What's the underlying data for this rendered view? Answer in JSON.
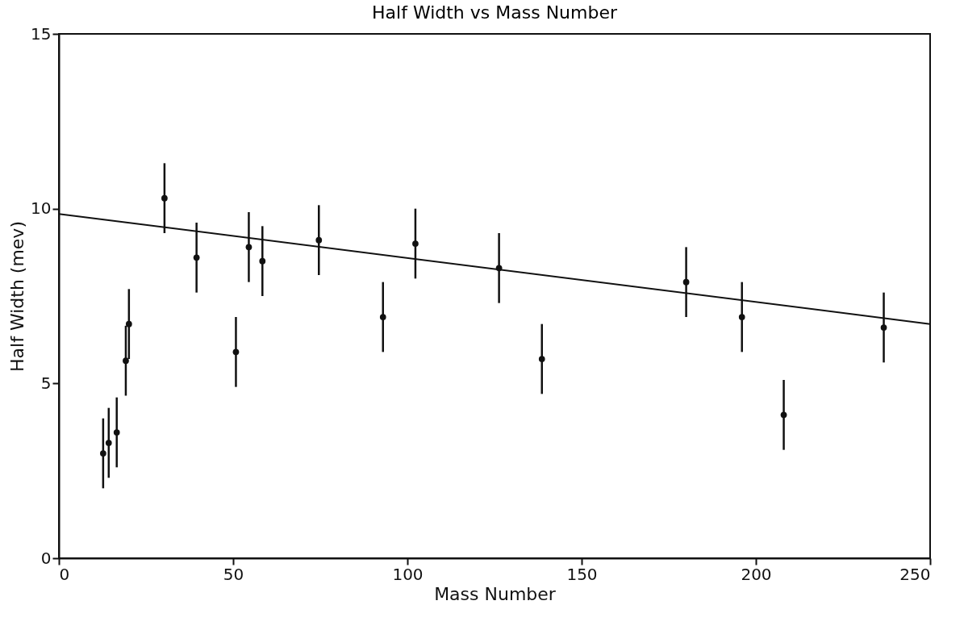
{
  "chart_data": {
    "type": "scatter",
    "title": "Half Width vs Mass Number",
    "xlabel": "Mass Number",
    "ylabel": "Half Width (mev)",
    "xlim": [
      0,
      250
    ],
    "xticks": [
      0,
      50,
      100,
      150,
      200,
      250
    ],
    "ylim": [
      0,
      15
    ],
    "yticks": [
      0,
      5,
      10,
      15
    ],
    "grid": false,
    "series": [
      {
        "marker": "circle",
        "color": "#111111",
        "x": [
          12.7,
          14.3,
          16.6,
          19.2,
          20.1,
          30.3,
          39.5,
          50.8,
          54.5,
          58.4,
          74.6,
          93,
          102.3,
          126.3,
          138.6,
          180,
          196,
          208,
          236.7
        ],
        "values": [
          3.0,
          3.3,
          3.6,
          5.65,
          6.7,
          10.3,
          8.6,
          5.9,
          8.9,
          8.5,
          9.1,
          6.9,
          9.0,
          8.3,
          5.7,
          7.9,
          6.9,
          4.1,
          6.6
        ],
        "errors": [
          1,
          1,
          1,
          1,
          1,
          1,
          1,
          1,
          1,
          1,
          1,
          1,
          1,
          1,
          1,
          1,
          1,
          1,
          1
        ]
      },
      {
        "type": "line",
        "color": "#111111",
        "line_style": "solid",
        "x": [
          0,
          250
        ],
        "values": [
          9.85,
          6.7
        ]
      }
    ]
  }
}
